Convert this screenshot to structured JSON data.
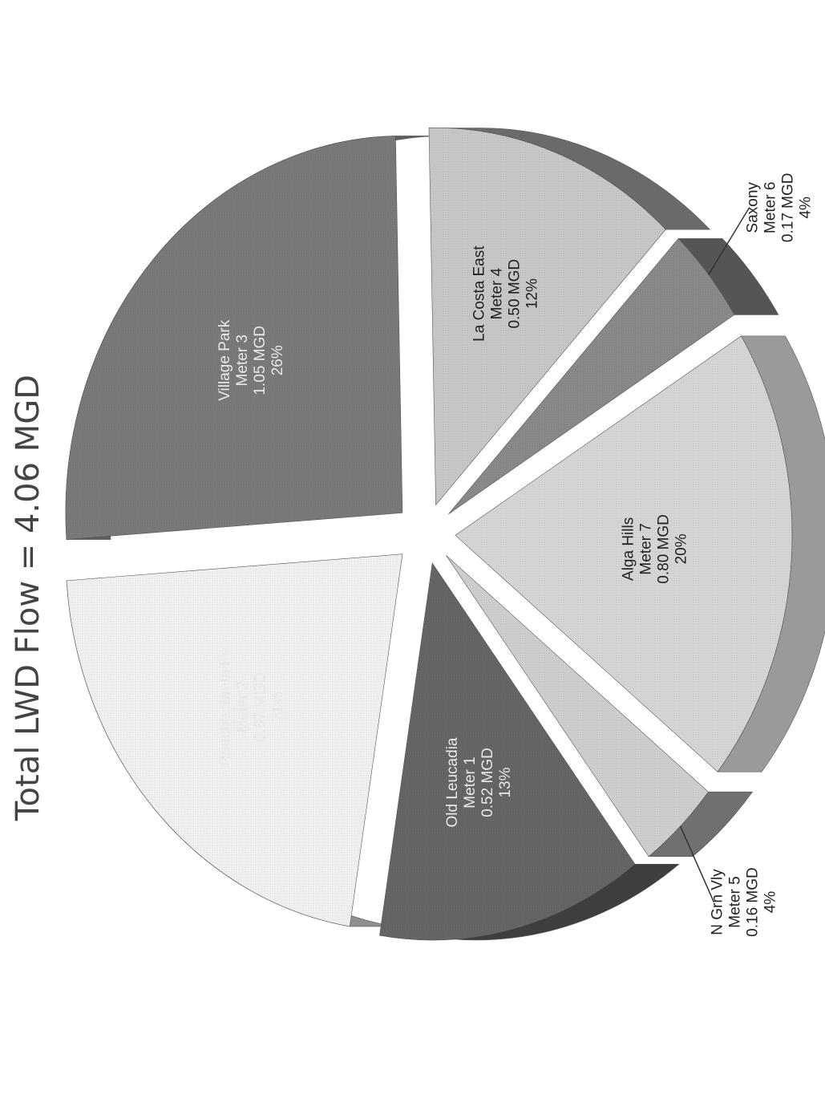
{
  "chart_data": {
    "type": "pie",
    "title": "Total LWD Flow =  4.06 MGD",
    "unit": "MGD",
    "slices": [
      {
        "name": "Rancho Santa Fe",
        "meter": "Meter 2",
        "value": 0.87,
        "value_label": "0.87 MGD",
        "percent": "21%",
        "color": "#f1f1f1",
        "side": "#8f8f8f"
      },
      {
        "name": "Village Park",
        "meter": "Meter 3",
        "value": 1.05,
        "value_label": "1.05 MGD",
        "percent": "26%",
        "color": "#7a7a7a",
        "side": "#5e5e5e"
      },
      {
        "name": "La Costa East",
        "meter": "Meter 4",
        "value": 0.5,
        "value_label": "0.50 MGD",
        "percent": "12%",
        "color": "#c8c8c8",
        "side": "#6a6a6a"
      },
      {
        "name": "Saxony",
        "meter": "Meter 6",
        "value": 0.17,
        "value_label": "0.17 MGD",
        "percent": "4%",
        "color": "#8a8a8a",
        "side": "#555555"
      },
      {
        "name": "Alga Hills",
        "meter": "Meter 7",
        "value": 0.8,
        "value_label": "0.80 MGD",
        "percent": "20%",
        "color": "#d6d6d6",
        "side": "#9a9a9a"
      },
      {
        "name": "N Grn Vly",
        "meter": "Meter 5",
        "value": 0.16,
        "value_label": "0.16 MGD",
        "percent": "4%",
        "color": "#cfcfcf",
        "side": "#707070"
      },
      {
        "name": "Old Leucadia",
        "meter": "Meter 1",
        "value": 0.52,
        "value_label": "0.52 MGD",
        "percent": "13%",
        "color": "#666666",
        "side": "#3e3e3e"
      }
    ],
    "legend": "none",
    "labels": "data labels on slices; callout leaders for Saxony and N Grn Vly"
  }
}
